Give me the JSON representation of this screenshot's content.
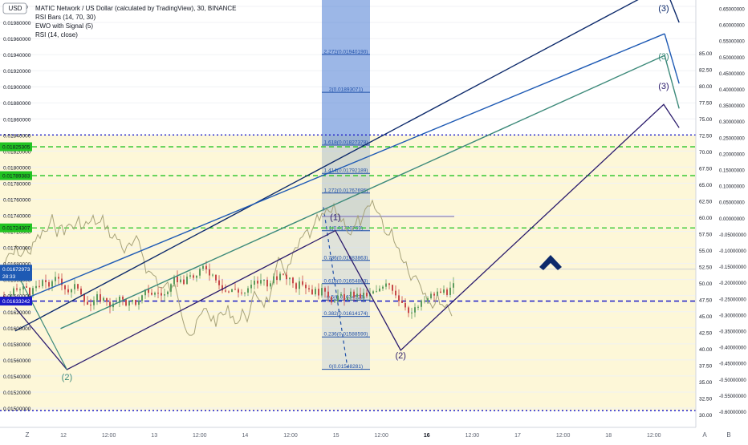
{
  "header": {
    "currency_badge": "USD",
    "title_line": "MATIC Network / US Dollar (calculated by TradingView), 30, BINANCE",
    "indicators": [
      "RSI Bars (14, 70, 30)",
      "EWO with Signal (5)",
      "RSI (14, close)"
    ]
  },
  "colors": {
    "zone_fill": "#fdf7d8",
    "fib_box": "#4a7bd4",
    "green_dash": "#21c321",
    "blue_dash": "#1c1cc8",
    "navy_line": "#0d2a6b",
    "blue_line": "#1e5ab4",
    "teal_line": "#3d8a7a",
    "purple_line": "#2a1a6b",
    "rsi_line": "#a6a27a",
    "candle_up": "#5e9c5e",
    "candle_down": "#c74a4a"
  },
  "chart_data": {
    "type": "line",
    "symbol": "MATICUSD",
    "interval": "30",
    "exchange": "BINANCE",
    "price_axis_ticks": [
      "0.01500000",
      "0.01520000",
      "0.01540000",
      "0.01560000",
      "0.01580000",
      "0.01600000",
      "0.01620000",
      "0.01640000",
      "0.01660000",
      "0.01680000",
      "0.01700000",
      "0.01720000",
      "0.01740000",
      "0.01760000",
      "0.01780000",
      "0.01800000",
      "0.01820000",
      "0.01840000",
      "0.01860000",
      "0.01880000",
      "0.01900000",
      "0.01920000",
      "0.01940000",
      "0.01960000",
      "0.01980000",
      "0.0200000"
    ],
    "rsi_axis_ticks": [
      "30.00",
      "32.50",
      "35.00",
      "37.50",
      "40.00",
      "42.50",
      "45.00",
      "47.50",
      "50.00",
      "52.50",
      "55.00",
      "57.50",
      "60.00",
      "62.50",
      "65.00",
      "67.50",
      "70.00",
      "72.50",
      "75.00",
      "77.50",
      "80.00",
      "82.50",
      "85.00"
    ],
    "ewo_axis_ticks": [
      "-0.60000000",
      "-0.55000000",
      "-0.50000000",
      "-0.45000000",
      "-0.40000000",
      "-0.35000000",
      "-0.30000000",
      "-0.25000000",
      "-0.20000000",
      "-0.15000000",
      "-0.10000000",
      "-0.05000000",
      "0.00000000",
      "0.05000000",
      "0.10000000",
      "0.15000000",
      "0.20000000",
      "0.25000000",
      "0.30000000",
      "0.35000000",
      "0.40000000",
      "0.45000000",
      "0.50000000",
      "0.55000000",
      "0.60000000",
      "0.65000000"
    ],
    "time_axis_labels": [
      "12",
      "12:00",
      "13",
      "12:00",
      "14",
      "12:00",
      "15",
      "12:00",
      "16",
      "12:00",
      "17",
      "12:00",
      "18",
      "12:00"
    ],
    "price_labels": [
      {
        "text": "0.01825305",
        "price": 0.01825305,
        "style": "green"
      },
      {
        "text": "0.01789383",
        "price": 0.01789383,
        "style": "green"
      },
      {
        "text": "0.01724307",
        "price": 0.01724307,
        "style": "green"
      },
      {
        "text": "0.01672973",
        "price": 0.01672973,
        "style": "current"
      },
      {
        "text": "28:33",
        "price": 0.01664,
        "style": "current"
      },
      {
        "text": "0.01633242",
        "price": 0.01633242,
        "style": "blue"
      }
    ],
    "horizontal_lines": [
      {
        "price": 0.0184,
        "style": "dotted-blue"
      },
      {
        "price": 0.01825305,
        "style": "dashed-green"
      },
      {
        "price": 0.01789383,
        "style": "dashed-green"
      },
      {
        "price": 0.01724307,
        "style": "dashed-green"
      },
      {
        "price": 0.01633242,
        "style": "dashed-blue"
      },
      {
        "price": 0.01497,
        "style": "dotted-blue"
      }
    ],
    "fib_levels": [
      {
        "label": "0(0.01548281)",
        "price": 0.01548281
      },
      {
        "label": "0.236(0.01588590)",
        "price": 0.0158859
      },
      {
        "label": "0.382(0.01614174)",
        "price": 0.01614174
      },
      {
        "label": "0.5(0.01634528)",
        "price": 0.01634528
      },
      {
        "label": "0.618(0.01654883)",
        "price": 0.01654883
      },
      {
        "label": "0.786(0.01683863)",
        "price": 0.01683863
      },
      {
        "label": "1(0.01720769)",
        "price": 0.01720769
      },
      {
        "label": "1.272(0.01767695)",
        "price": 0.01767695
      },
      {
        "label": "1.414(0.01792189)",
        "price": 0.01792189
      },
      {
        "label": "1.618(0.01827378)",
        "price": 0.01827378
      },
      {
        "label": "2(0.01893071)",
        "price": 0.01893071
      },
      {
        "label": "2.272(0.01940190)",
        "price": 0.0194019
      }
    ],
    "wave_labels": [
      {
        "text": "(2)",
        "t": 0.57,
        "price": 0.01535,
        "color": "teal"
      },
      {
        "text": "(1)",
        "t": 3.53,
        "price": 0.01734,
        "color": "purple"
      },
      {
        "text": "(2)",
        "t": 4.25,
        "price": 0.01562,
        "color": "purple"
      },
      {
        "text": "(3)",
        "t": 7.15,
        "price": 0.01994,
        "color": "navy"
      },
      {
        "text": "(3)",
        "t": 7.15,
        "price": 0.01934,
        "color": "teal"
      },
      {
        "text": "(3)",
        "t": 7.15,
        "price": 0.01897,
        "color": "purple"
      }
    ],
    "trend_lines": [
      {
        "from": [
          0,
          0.01596
        ],
        "to": [
          7.16,
          0.02026
        ],
        "color": "navy"
      },
      {
        "from": [
          0,
          0.01631
        ],
        "to": [
          7.16,
          0.01966
        ],
        "color": "blue"
      },
      {
        "from": [
          0.5,
          0.01599
        ],
        "to": [
          7.16,
          0.01939
        ],
        "color": "teal"
      },
      {
        "from": [
          7.16,
          0.02026
        ],
        "to": [
          7.32,
          0.0198
        ],
        "color": "navy"
      },
      {
        "from": [
          7.16,
          0.01966
        ],
        "to": [
          7.32,
          0.01904
        ],
        "color": "blue"
      },
      {
        "from": [
          7.16,
          0.01939
        ],
        "to": [
          7.32,
          0.01873
        ],
        "color": "teal"
      }
    ],
    "wave_path": [
      {
        "t": 0.0,
        "price": 0.01625
      },
      {
        "t": 0.57,
        "price": 0.01548
      },
      {
        "t": 3.53,
        "price": 0.01721
      },
      {
        "t": 4.25,
        "price": 0.01572
      },
      {
        "t": 7.15,
        "price": 0.01878
      },
      {
        "t": 7.32,
        "price": 0.01849
      }
    ],
    "wave_path_extra": [
      {
        "t": 0.0,
        "price": 0.01672
      },
      {
        "t": 0.57,
        "price": 0.01548
      }
    ]
  }
}
